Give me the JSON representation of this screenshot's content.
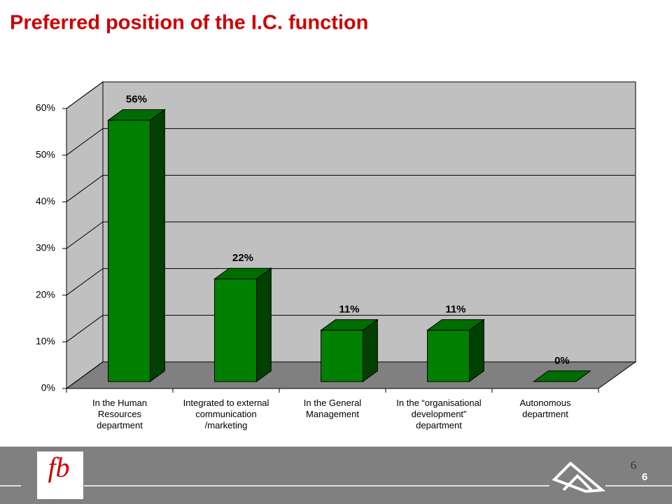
{
  "chart_data": {
    "type": "bar3d",
    "title": "Preferred position of the I.C. function",
    "categories": [
      "In the Human Resources department",
      "Integrated to external communication /marketing",
      "In the General Management",
      "In the “organisational development” department",
      "Autonomous department"
    ],
    "values": [
      56,
      22,
      11,
      11,
      0
    ],
    "value_labels": [
      "56%",
      "22%",
      "11%",
      "11%",
      "0%"
    ],
    "color": "#008000",
    "ylim": [
      0,
      60
    ],
    "yticks": [
      {
        "value": 0,
        "label": "0%"
      },
      {
        "value": 10,
        "label": "10%"
      },
      {
        "value": 20,
        "label": "20%"
      },
      {
        "value": 30,
        "label": "30%"
      },
      {
        "value": 40,
        "label": "40%"
      },
      {
        "value": 50,
        "label": "50%"
      },
      {
        "value": 60,
        "label": "60%"
      }
    ],
    "grid": true
  },
  "footer": {
    "logo_text": "fb",
    "page_number": "6",
    "slide_number": "6"
  }
}
